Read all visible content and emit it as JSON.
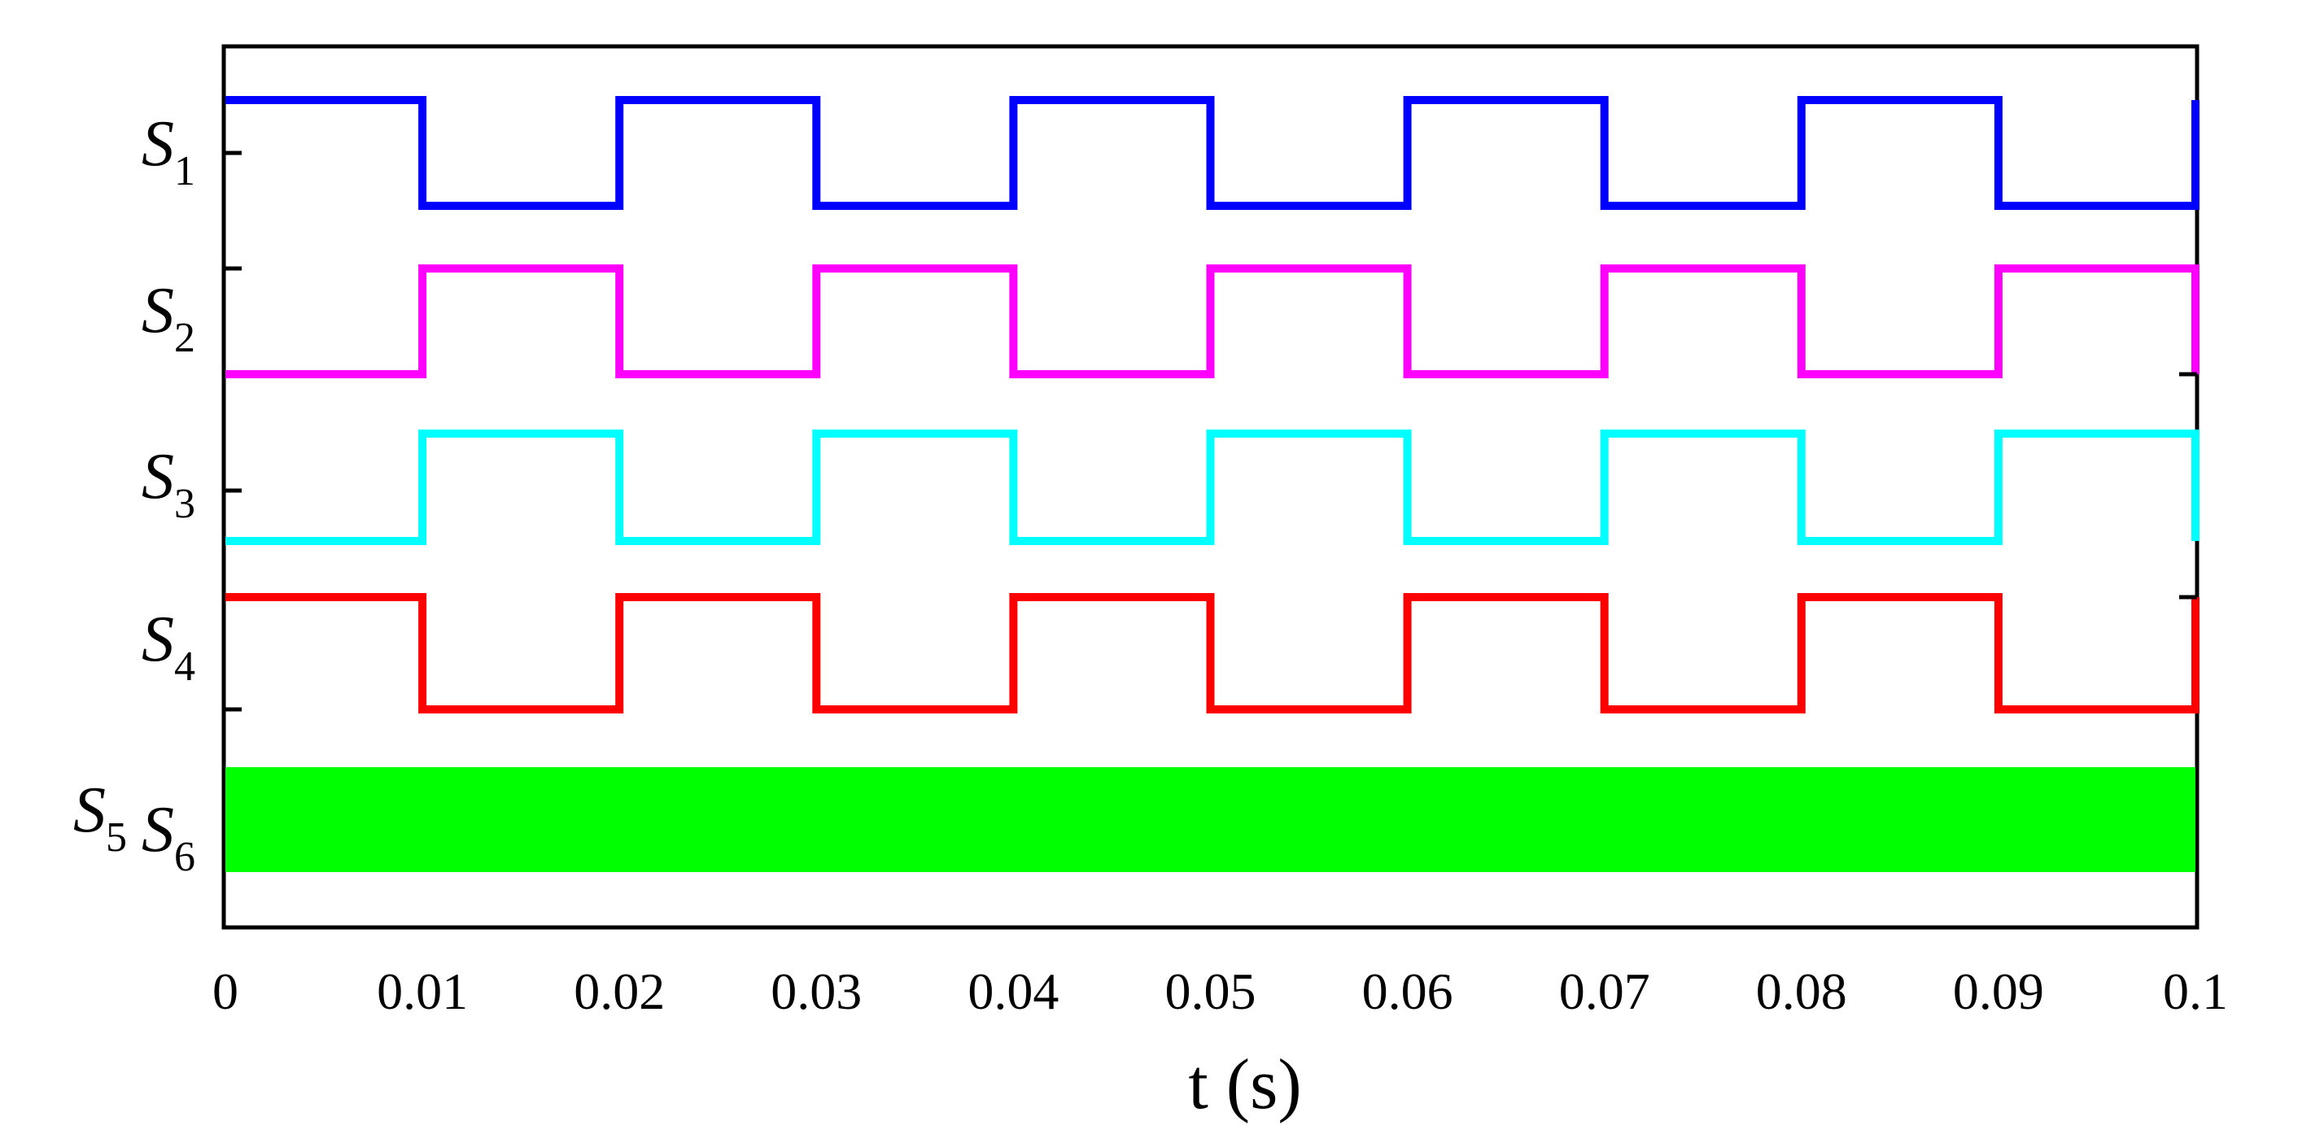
{
  "chart_data": {
    "type": "line",
    "title": "",
    "xlabel": "t (s)",
    "ylabel": "",
    "xlim": [
      0,
      0.1
    ],
    "x_ticks": [
      "0",
      "0.01",
      "0.02",
      "0.03",
      "0.04",
      "0.05",
      "0.06",
      "0.07",
      "0.08",
      "0.09",
      "0.1"
    ],
    "x_tick_values": [
      0,
      0.01,
      0.02,
      0.03,
      0.04,
      0.05,
      0.06,
      0.07,
      0.08,
      0.09,
      0.1
    ],
    "grid": false,
    "legend": "none",
    "series": [
      {
        "name": "S1",
        "label_main": "S",
        "label_sub": "1",
        "color": "#0000ff",
        "x": [
          0,
          0.01,
          0.01,
          0.02,
          0.02,
          0.03,
          0.03,
          0.04,
          0.04,
          0.05,
          0.05,
          0.06,
          0.06,
          0.07,
          0.07,
          0.08,
          0.08,
          0.09,
          0.09,
          0.1,
          0.1
        ],
        "y": [
          1,
          1,
          0,
          0,
          1,
          1,
          0,
          0,
          1,
          1,
          0,
          0,
          1,
          1,
          0,
          0,
          1,
          1,
          0,
          0,
          1
        ]
      },
      {
        "name": "S2",
        "label_main": "S",
        "label_sub": "2",
        "color": "#ff00ff",
        "x": [
          0,
          0.01,
          0.01,
          0.02,
          0.02,
          0.03,
          0.03,
          0.04,
          0.04,
          0.05,
          0.05,
          0.06,
          0.06,
          0.07,
          0.07,
          0.08,
          0.08,
          0.09,
          0.09,
          0.1,
          0.1
        ],
        "y": [
          0,
          0,
          1,
          1,
          0,
          0,
          1,
          1,
          0,
          0,
          1,
          1,
          0,
          0,
          1,
          1,
          0,
          0,
          1,
          1,
          0
        ]
      },
      {
        "name": "S3",
        "label_main": "S",
        "label_sub": "3",
        "color": "#00ffff",
        "x": [
          0,
          0.01,
          0.01,
          0.02,
          0.02,
          0.03,
          0.03,
          0.04,
          0.04,
          0.05,
          0.05,
          0.06,
          0.06,
          0.07,
          0.07,
          0.08,
          0.08,
          0.09,
          0.09,
          0.1,
          0.1
        ],
        "y": [
          0,
          0,
          1,
          1,
          0,
          0,
          1,
          1,
          0,
          0,
          1,
          1,
          0,
          0,
          1,
          1,
          0,
          0,
          1,
          1,
          0
        ]
      },
      {
        "name": "S4",
        "label_main": "S",
        "label_sub": "4",
        "color": "#ff0000",
        "x": [
          0,
          0.01,
          0.01,
          0.02,
          0.02,
          0.03,
          0.03,
          0.04,
          0.04,
          0.05,
          0.05,
          0.06,
          0.06,
          0.07,
          0.07,
          0.08,
          0.08,
          0.09,
          0.09,
          0.1,
          0.1
        ],
        "y": [
          1,
          1,
          0,
          0,
          1,
          1,
          0,
          0,
          1,
          1,
          0,
          0,
          1,
          1,
          0,
          0,
          1,
          1,
          0,
          0,
          1
        ]
      },
      {
        "name": "S5 S6",
        "label_parts": [
          {
            "main": "S",
            "sub": "5"
          },
          {
            "main": "S",
            "sub": "6"
          }
        ],
        "color": "#00ff00",
        "description": "high-frequency switching (band fills 0 to 1)",
        "x": [
          0,
          0.1
        ],
        "y_min": 0,
        "y_max": 1
      }
    ]
  }
}
